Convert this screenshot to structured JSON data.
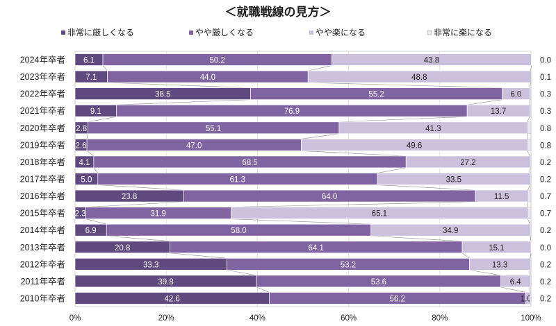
{
  "chart_data": {
    "type": "bar",
    "orientation": "horizontal",
    "stacked": "100%",
    "title": "＜就職戦線の見方＞",
    "categories": [
      "2024年卒者",
      "2023年卒者",
      "2022年卒者",
      "2021年卒者",
      "2020年卒者",
      "2019年卒者",
      "2018年卒者",
      "2017年卒者",
      "2016年卒者",
      "2015年卒者",
      "2014年卒者",
      "2013年卒者",
      "2012年卒者",
      "2011年卒者",
      "2010年卒者"
    ],
    "series": [
      {
        "name": "非常に厳しくなる",
        "color": "#5f4a7f",
        "values": [
          6.1,
          7.1,
          38.5,
          9.1,
          2.8,
          2.6,
          4.1,
          5.0,
          23.8,
          2.3,
          6.9,
          20.8,
          33.3,
          39.8,
          42.6
        ]
      },
      {
        "name": "やや厳しくなる",
        "color": "#8064a2",
        "values": [
          50.2,
          44.0,
          55.2,
          76.9,
          55.1,
          47.0,
          68.5,
          61.3,
          64.0,
          31.9,
          58.0,
          64.1,
          53.2,
          53.6,
          56.2
        ]
      },
      {
        "name": "やや楽になる",
        "color": "#cbc1dc",
        "values": [
          43.8,
          48.8,
          6.0,
          13.7,
          41.3,
          49.6,
          27.2,
          33.5,
          11.5,
          65.1,
          34.9,
          15.1,
          13.3,
          6.4,
          1.0
        ]
      },
      {
        "name": "非常に楽になる",
        "color": "#ebe7f1",
        "values": [
          0.0,
          0.1,
          0.3,
          0.3,
          0.8,
          0.8,
          0.2,
          0.2,
          0.7,
          0.7,
          0.2,
          0.0,
          0.2,
          0.2,
          0.2
        ]
      }
    ],
    "xlim": [
      0,
      100
    ],
    "xticks": [
      "0%",
      "20%",
      "40%",
      "60%",
      "80%",
      "100%"
    ],
    "legend": "top",
    "grid": false,
    "series_lines": true
  }
}
